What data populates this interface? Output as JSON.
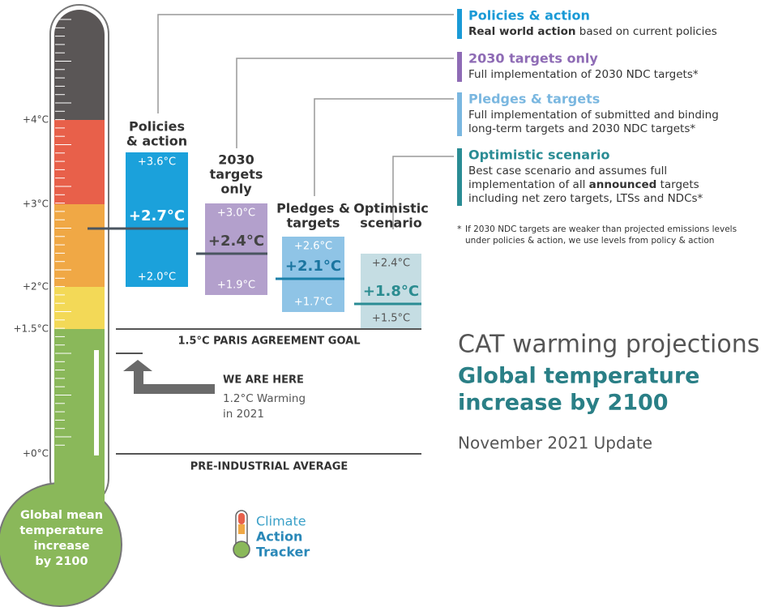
{
  "axis_labels": [
    "+4°C",
    "+3°C",
    "+2°C",
    "+1.5°C",
    "+0°C"
  ],
  "scenarios": [
    {
      "label_lines": [
        "Policies",
        "& action"
      ],
      "high": "+3.6°C",
      "central": "+2.7°C",
      "low": "+2.0°C"
    },
    {
      "label_lines": [
        "2030",
        "targets",
        "only"
      ],
      "high": "+3.0°C",
      "central": "+2.4°C",
      "low": "+1.9°C"
    },
    {
      "label_lines": [
        "Pledges &",
        "targets"
      ],
      "high": "+2.6°C",
      "central": "+2.1°C",
      "low": "+1.7°C"
    },
    {
      "label_lines": [
        "Optimistic",
        "scenario"
      ],
      "high": "+2.4°C",
      "central": "+1.8°C",
      "low": "+1.5°C"
    }
  ],
  "legend": [
    {
      "title": "Policies & action",
      "lines": [
        [
          {
            "text": "Real world action",
            "bold": true
          },
          {
            "text": " based on current policies",
            "bold": false
          }
        ]
      ]
    },
    {
      "title": "2030 targets only",
      "lines": [
        [
          {
            "text": "Full implementation of 2030 NDC targets*",
            "bold": false
          }
        ]
      ]
    },
    {
      "title": "Pledges & targets",
      "lines": [
        [
          {
            "text": "Full implementation of submitted and binding",
            "bold": false
          }
        ],
        [
          {
            "text": "long-term targets and 2030 NDC targets*",
            "bold": false
          }
        ]
      ]
    },
    {
      "title": "Optimistic scenario",
      "lines": [
        [
          {
            "text": "Best case scenario and assumes full",
            "bold": false
          }
        ],
        [
          {
            "text": "implementation of all ",
            "bold": false
          },
          {
            "text": "announced",
            "bold": true
          },
          {
            "text": " targets",
            "bold": false
          }
        ],
        [
          {
            "text": "including net zero targets, LTSs and NDCs*",
            "bold": false
          }
        ]
      ]
    }
  ],
  "footnote_mark": "*",
  "footnote": [
    "If 2030 NDC targets are weaker than projected emissions levels",
    "under policies & action, we use levels from policy & action"
  ],
  "paris_goal": "1.5°C PARIS AGREEMENT GOAL",
  "pre_industrial": "PRE-INDUSTRIAL AVERAGE",
  "we_are_here": {
    "title": "WE ARE HERE",
    "lines": [
      "1.2°C Warming",
      "in 2021"
    ]
  },
  "heading": {
    "line1": "CAT warming projections",
    "bold_lines": [
      "Global temperature",
      "increase by 2100"
    ],
    "update": "November 2021 Update"
  },
  "bulb_label": [
    "Global mean",
    "temperature",
    "increase",
    "by 2100"
  ],
  "logo": [
    "Climate",
    "Action",
    "Tracker"
  ]
}
